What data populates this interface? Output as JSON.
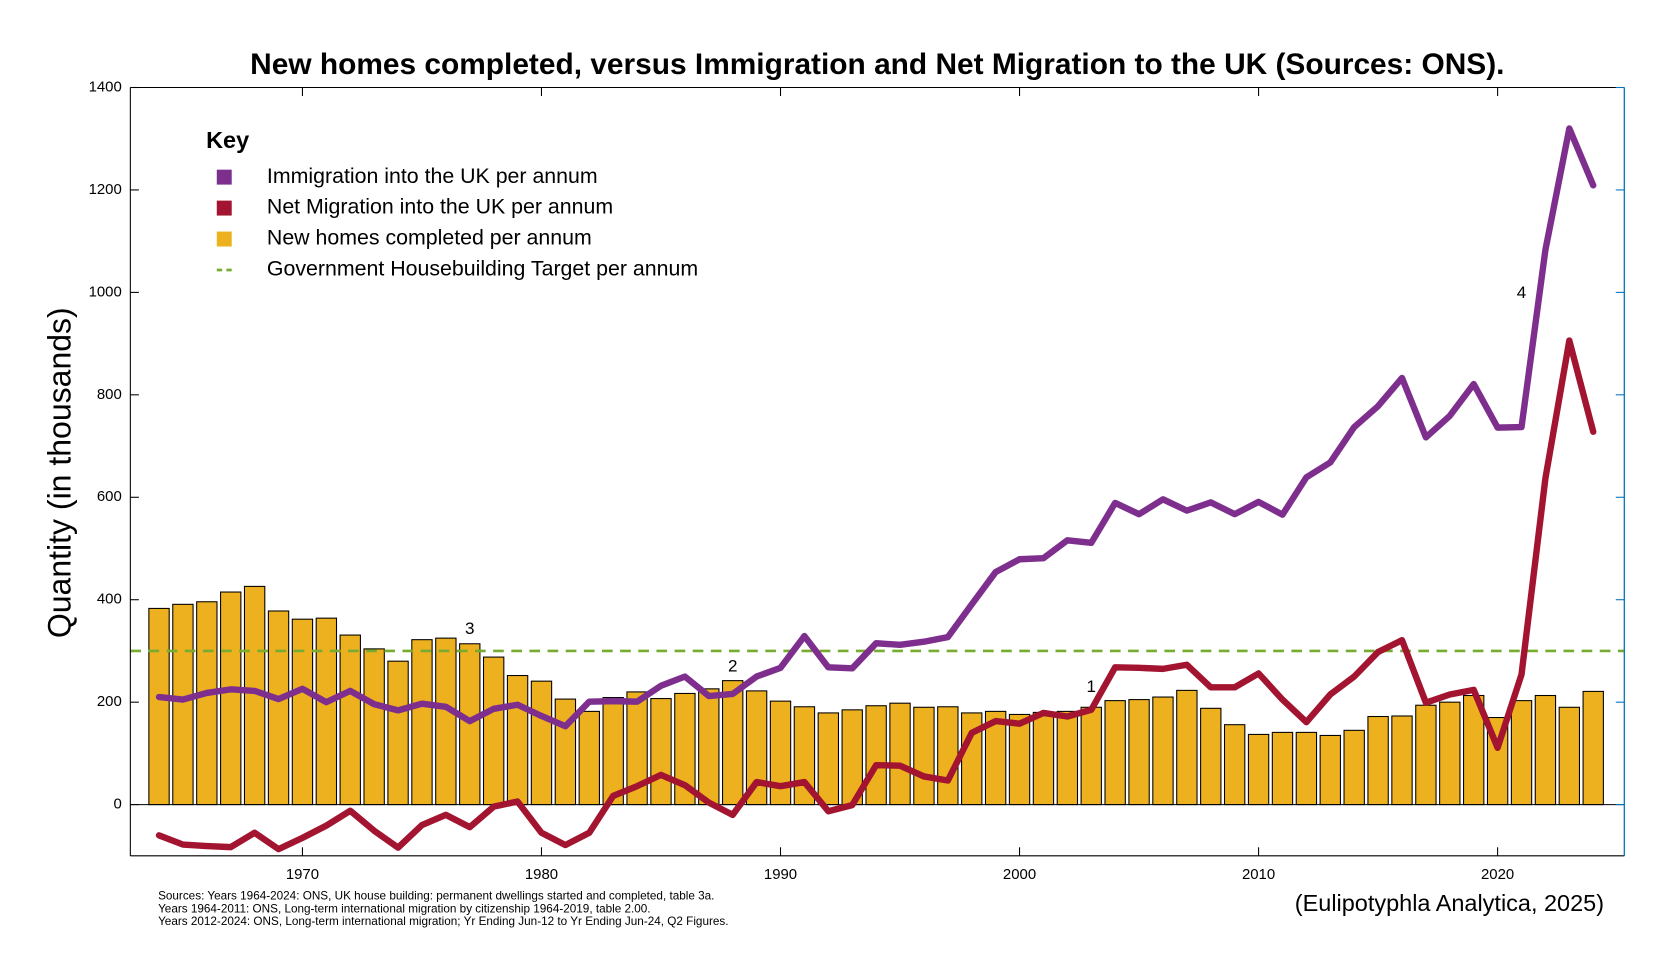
{
  "chart_data": {
    "type": "bar",
    "title": "New homes completed, versus Immigration and Net Migration to the UK (Sources: ONS).",
    "y_label": "Quantity (in thousands)",
    "legend_title": "Key",
    "legend_position": "upper left",
    "credit": "(Eulipotyphla Analytica, 2025)",
    "notes": [
      "Sources: Years 1964-2024: ONS, UK house building: permanent dwellings started and completed, table 3a.",
      "Years 1964-2011: ONS, Long-term international migration by citizenship 1964-2019, table 2.00.",
      "Years 2012-2024: ONS, Long-term international migration; Yr Ending Jun-12 to Yr Ending Jun-24, Q2 Figures."
    ],
    "x": [
      1964,
      1965,
      1966,
      1967,
      1968,
      1969,
      1970,
      1971,
      1972,
      1973,
      1974,
      1975,
      1976,
      1977,
      1978,
      1979,
      1980,
      1981,
      1982,
      1983,
      1984,
      1985,
      1986,
      1987,
      1988,
      1989,
      1990,
      1991,
      1992,
      1993,
      1994,
      1995,
      1996,
      1997,
      1998,
      1999,
      2000,
      2001,
      2002,
      2003,
      2004,
      2005,
      2006,
      2007,
      2008,
      2009,
      2010,
      2011,
      2012,
      2013,
      2014,
      2015,
      2016,
      2017,
      2018,
      2019,
      2020,
      2021,
      2022,
      2023,
      2024
    ],
    "xlim": [
      1962.8,
      2025.3
    ],
    "xticks": [
      1970,
      1980,
      1990,
      2000,
      2010,
      2020
    ],
    "ylim": [
      -100,
      1400
    ],
    "yticks": [
      0,
      200,
      400,
      600,
      800,
      1000,
      1200,
      1400
    ],
    "series": [
      {
        "name": "Immigration into the UK per annum",
        "color": "#7E2F8E",
        "kind": "line",
        "values": [
          210,
          205,
          218,
          225,
          222,
          206,
          226,
          200,
          222,
          196,
          184,
          197,
          191,
          163,
          187,
          195,
          173,
          153,
          201,
          202,
          201,
          232,
          250,
          212,
          216,
          250,
          267,
          329,
          268,
          266,
          315,
          312,
          318,
          327,
          391,
          454,
          479,
          481,
          516,
          511,
          589,
          567,
          596,
          574,
          590,
          567,
          591,
          566,
          639,
          668,
          737,
          778,
          833,
          717,
          759,
          821,
          736,
          737,
          1083,
          1320,
          1209
        ]
      },
      {
        "name": "Net Migration into the UK per annum",
        "color": "#A2142F",
        "kind": "line",
        "values": [
          -60,
          -78,
          -81,
          -83,
          -55,
          -87,
          -65,
          -41,
          -12,
          -51,
          -84,
          -40,
          -20,
          -44,
          -4,
          6,
          -55,
          -79,
          -55,
          17,
          36,
          58,
          38,
          4,
          -20,
          44,
          36,
          44,
          -13,
          -1,
          77,
          76,
          55,
          47,
          140,
          163,
          158,
          179,
          172,
          185,
          268,
          267,
          265,
          273,
          229,
          229,
          256,
          205,
          161,
          215,
          250,
          298,
          321,
          199,
          215,
          224,
          111,
          254,
          637,
          906,
          728
        ]
      },
      {
        "name": "New homes completed per annum",
        "color": "#EDB120",
        "kind": "bar",
        "values": [
          383,
          391,
          396,
          415,
          426,
          378,
          362,
          364,
          331,
          304,
          280,
          322,
          325,
          314,
          288,
          252,
          241,
          206,
          182,
          209,
          220,
          207,
          217,
          226,
          242,
          222,
          202,
          191,
          179,
          185,
          193,
          198,
          190,
          191,
          179,
          182,
          176,
          180,
          182,
          190,
          203,
          205,
          210,
          223,
          188,
          156,
          137,
          141,
          141,
          135,
          145,
          172,
          173,
          194,
          200,
          213,
          170,
          203,
          213,
          190,
          221
        ]
      }
    ],
    "reference_lines": [
      {
        "name": "Government Housebuilding Target per annum",
        "color": "#77AC30",
        "value": 300
      }
    ],
    "annotations": [
      {
        "text": "1",
        "x": 2003,
        "y": 229
      },
      {
        "text": "2",
        "x": 1988,
        "y": 269
      },
      {
        "text": "3",
        "x": 1977,
        "y": 342
      },
      {
        "text": "4",
        "x": 2021,
        "y": 998
      }
    ]
  }
}
